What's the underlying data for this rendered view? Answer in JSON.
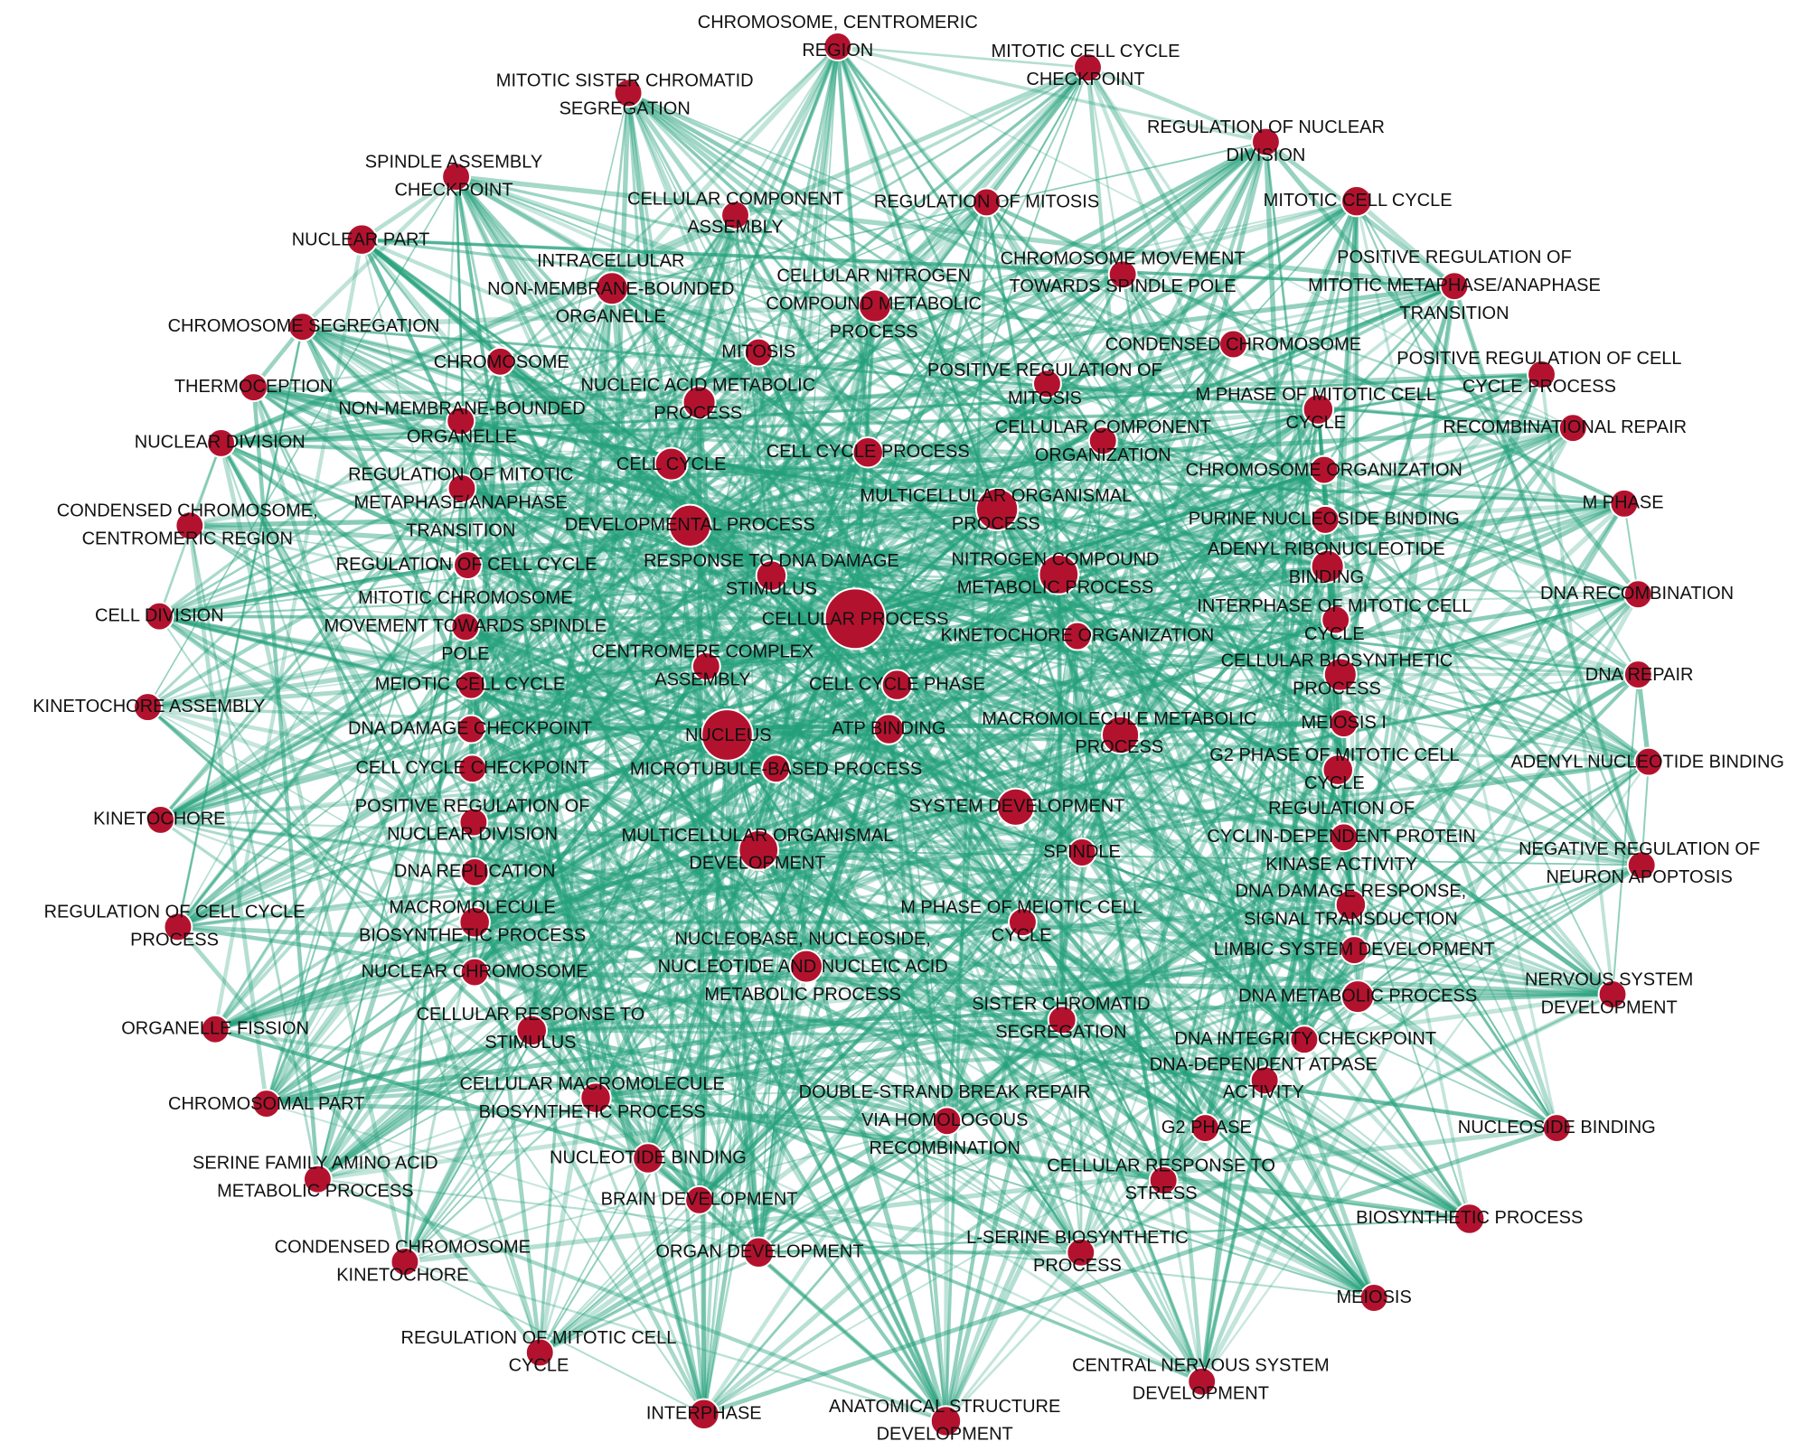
{
  "nodes": [
    {
      "label": [
        "CHROMOSOME, CENTROMERIC",
        "REGION"
      ]
    },
    {
      "label": [
        "MITOTIC CELL CYCLE",
        "CHECKPOINT"
      ]
    },
    {
      "label": [
        "MITOTIC SISTER CHROMATID",
        "SEGREGATION"
      ]
    },
    {
      "label": [
        "REGULATION OF NUCLEAR",
        "DIVISION"
      ]
    },
    {
      "label": [
        "SPINDLE ASSEMBLY",
        "CHECKPOINT"
      ]
    },
    {
      "label": [
        "CELLULAR COMPONENT",
        "ASSEMBLY"
      ]
    },
    {
      "label": [
        "REGULATION OF MITOSIS"
      ]
    },
    {
      "label": [
        "MITOTIC CELL CYCLE"
      ]
    },
    {
      "label": [
        "NUCLEAR PART"
      ]
    },
    {
      "label": [
        "INTRACELLULAR",
        "NON-MEMBRANE-BOUNDED",
        "ORGANELLE"
      ]
    },
    {
      "label": [
        "CELLULAR NITROGEN",
        "COMPOUND METABOLIC",
        "PROCESS"
      ]
    },
    {
      "label": [
        "CHROMOSOME MOVEMENT",
        "TOWARDS SPINDLE POLE"
      ]
    },
    {
      "label": [
        "POSITIVE REGULATION OF",
        "MITOTIC METAPHASE/ANAPHASE",
        "TRANSITION"
      ]
    },
    {
      "label": [
        "CHROMOSOME SEGREGATION"
      ]
    },
    {
      "label": [
        "MITOSIS"
      ]
    },
    {
      "label": [
        "CONDENSED CHROMOSOME"
      ]
    },
    {
      "label": [
        "POSITIVE REGULATION OF CELL",
        "CYCLE PROCESS"
      ]
    },
    {
      "label": [
        "CHROMOSOME"
      ]
    },
    {
      "label": [
        "THERMOCEPTION"
      ]
    },
    {
      "label": [
        "NUCLEIC ACID METABOLIC",
        "PROCESS"
      ]
    },
    {
      "label": [
        "POSITIVE REGULATION OF",
        "MITOSIS"
      ]
    },
    {
      "label": [
        "M PHASE OF MITOTIC CELL",
        "CYCLE"
      ]
    },
    {
      "label": [
        "NON-MEMBRANE-BOUNDED",
        "ORGANELLE"
      ]
    },
    {
      "label": [
        "RECOMBINATIONAL REPAIR"
      ]
    },
    {
      "label": [
        "NUCLEAR DIVISION"
      ]
    },
    {
      "label": [
        "CELL CYCLE PROCESS"
      ]
    },
    {
      "label": [
        "CELLULAR COMPONENT",
        "ORGANIZATION"
      ]
    },
    {
      "label": [
        "CELL CYCLE"
      ]
    },
    {
      "label": [
        "REGULATION OF MITOTIC",
        "METAPHASE/ANAPHASE",
        "TRANSITION"
      ]
    },
    {
      "label": [
        "CHROMOSOME ORGANIZATION"
      ]
    },
    {
      "label": [
        "MULTICELLULAR ORGANISMAL",
        "PROCESS"
      ]
    },
    {
      "label": [
        "M PHASE"
      ]
    },
    {
      "label": [
        "CONDENSED CHROMOSOME,",
        "CENTROMERIC REGION"
      ]
    },
    {
      "label": [
        "DEVELOPMENTAL PROCESS"
      ]
    },
    {
      "label": [
        "PURINE NUCLEOSIDE BINDING"
      ]
    },
    {
      "label": [
        "ADENYL RIBONUCLEOTIDE",
        "BINDING"
      ]
    },
    {
      "label": [
        "RESPONSE TO DNA DAMAGE",
        "STIMULUS"
      ]
    },
    {
      "label": [
        "NITROGEN COMPOUND",
        "METABOLIC PROCESS"
      ]
    },
    {
      "label": [
        "REGULATION OF CELL CYCLE"
      ]
    },
    {
      "label": [
        "DNA RECOMBINATION"
      ]
    },
    {
      "label": [
        "CELL DIVISION"
      ]
    },
    {
      "label": [
        "CELLULAR PROCESS"
      ]
    },
    {
      "label": [
        "MITOTIC CHROMOSOME",
        "MOVEMENT TOWARDS SPINDLE",
        "POLE"
      ]
    },
    {
      "label": [
        "INTERPHASE OF MITOTIC CELL",
        "CYCLE"
      ]
    },
    {
      "label": [
        "KINETOCHORE ORGANIZATION"
      ]
    },
    {
      "label": [
        "CENTROMERE COMPLEX",
        "ASSEMBLY"
      ]
    },
    {
      "label": [
        "CELLULAR BIOSYNTHETIC",
        "PROCESS"
      ]
    },
    {
      "label": [
        "MEIOTIC CELL CYCLE"
      ]
    },
    {
      "label": [
        "CELL CYCLE PHASE"
      ]
    },
    {
      "label": [
        "DNA REPAIR"
      ]
    },
    {
      "label": [
        "KINETOCHORE ASSEMBLY"
      ]
    },
    {
      "label": [
        "MACROMOLECULE METABOLIC",
        "PROCESS"
      ]
    },
    {
      "label": [
        "NUCLEUS"
      ]
    },
    {
      "label": [
        "ATP BINDING"
      ]
    },
    {
      "label": [
        "DNA DAMAGE CHECKPOINT"
      ]
    },
    {
      "label": [
        "MEIOSIS I"
      ]
    },
    {
      "label": [
        "G2 PHASE OF MITOTIC CELL",
        "CYCLE"
      ]
    },
    {
      "label": [
        "ADENYL NUCLEOTIDE BINDING"
      ]
    },
    {
      "label": [
        "CELL CYCLE CHECKPOINT"
      ]
    },
    {
      "label": [
        "MICROTUBULE-BASED PROCESS"
      ]
    },
    {
      "label": [
        "SYSTEM DEVELOPMENT"
      ]
    },
    {
      "label": [
        "KINETOCHORE"
      ]
    },
    {
      "label": [
        "POSITIVE REGULATION OF",
        "NUCLEAR DIVISION"
      ]
    },
    {
      "label": [
        "REGULATION OF",
        "CYCLIN-DEPENDENT PROTEIN",
        "KINASE ACTIVITY"
      ]
    },
    {
      "label": [
        "MULTICELLULAR ORGANISMAL",
        "DEVELOPMENT"
      ]
    },
    {
      "label": [
        "SPINDLE"
      ]
    },
    {
      "label": [
        "NEGATIVE REGULATION OF",
        "NEURON APOPTOSIS"
      ]
    },
    {
      "label": [
        "DNA REPLICATION"
      ]
    },
    {
      "label": [
        "DNA DAMAGE RESPONSE,",
        "SIGNAL TRANSDUCTION"
      ]
    },
    {
      "label": [
        "REGULATION OF CELL CYCLE",
        "PROCESS"
      ]
    },
    {
      "label": [
        "MACROMOLECULE",
        "BIOSYNTHETIC PROCESS"
      ]
    },
    {
      "label": [
        "M PHASE OF MEIOTIC CELL",
        "CYCLE"
      ]
    },
    {
      "label": [
        "LIMBIC SYSTEM DEVELOPMENT"
      ]
    },
    {
      "label": [
        "NUCLEOBASE, NUCLEOSIDE,",
        "NUCLEOTIDE AND NUCLEIC ACID",
        "METABOLIC PROCESS"
      ]
    },
    {
      "label": [
        "NUCLEAR CHROMOSOME"
      ]
    },
    {
      "label": [
        "DNA METABOLIC PROCESS"
      ]
    },
    {
      "label": [
        "NERVOUS SYSTEM",
        "DEVELOPMENT"
      ]
    },
    {
      "label": [
        "SISTER CHROMATID",
        "SEGREGATION"
      ]
    },
    {
      "label": [
        "CELLULAR RESPONSE TO",
        "STIMULUS"
      ]
    },
    {
      "label": [
        "ORGANELLE FISSION"
      ]
    },
    {
      "label": [
        "DNA INTEGRITY CHECKPOINT"
      ]
    },
    {
      "label": [
        "DNA-DEPENDENT ATPASE",
        "ACTIVITY"
      ]
    },
    {
      "label": [
        "CELLULAR MACROMOLECULE",
        "BIOSYNTHETIC PROCESS"
      ]
    },
    {
      "label": [
        "CHROMOSOMAL PART"
      ]
    },
    {
      "label": [
        "DOUBLE-STRAND BREAK REPAIR",
        "VIA HOMOLOGOUS",
        "RECOMBINATION"
      ]
    },
    {
      "label": [
        "G2 PHASE"
      ]
    },
    {
      "label": [
        "NUCLEOSIDE BINDING"
      ]
    },
    {
      "label": [
        "NUCLEOTIDE BINDING"
      ]
    },
    {
      "label": [
        "SERINE FAMILY AMINO ACID",
        "METABOLIC PROCESS"
      ]
    },
    {
      "label": [
        "CELLULAR RESPONSE TO",
        "STRESS"
      ]
    },
    {
      "label": [
        "BRAIN DEVELOPMENT"
      ]
    },
    {
      "label": [
        "BIOSYNTHETIC PROCESS"
      ]
    },
    {
      "label": [
        "ORGAN DEVELOPMENT"
      ]
    },
    {
      "label": [
        "CONDENSED CHROMOSOME",
        "KINETOCHORE"
      ]
    },
    {
      "label": [
        "L-SERINE BIOSYNTHETIC",
        "PROCESS"
      ]
    },
    {
      "label": [
        "MEIOSIS"
      ]
    },
    {
      "label": [
        "REGULATION OF MITOTIC CELL",
        "CYCLE"
      ]
    },
    {
      "label": [
        "CENTRAL NERVOUS SYSTEM",
        "DEVELOPMENT"
      ]
    },
    {
      "label": [
        "INTERPHASE"
      ]
    },
    {
      "label": [
        "ANATOMICAL STRUCTURE",
        "DEVELOPMENT"
      ]
    }
  ]
}
